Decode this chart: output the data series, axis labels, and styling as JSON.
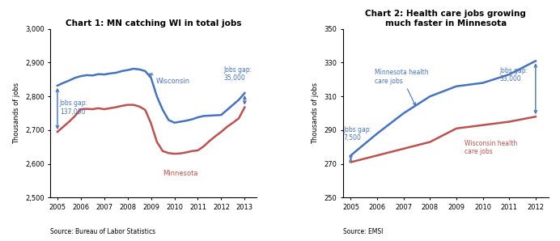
{
  "chart1": {
    "title": "Chart 1: MN catching WI in total jobs",
    "ylabel": "Thousands of jobs",
    "source": "Source: Bureau of Labor Statistics",
    "ylim": [
      2500,
      3000
    ],
    "yticks": [
      2500,
      2600,
      2700,
      2800,
      2900,
      3000
    ],
    "wi_color": "#4472C4",
    "mn_color": "#C0504D",
    "wi_years": [
      2005,
      2005.25,
      2005.5,
      2005.75,
      2006,
      2006.25,
      2006.5,
      2006.75,
      2007,
      2007.25,
      2007.5,
      2007.75,
      2008,
      2008.25,
      2008.5,
      2008.75,
      2009,
      2009.25,
      2009.5,
      2009.75,
      2010,
      2010.25,
      2010.5,
      2010.75,
      2011,
      2011.25,
      2011.5,
      2011.75,
      2012,
      2012.25,
      2012.5,
      2012.75,
      2013
    ],
    "wi_vals": [
      2832,
      2840,
      2847,
      2855,
      2860,
      2863,
      2862,
      2866,
      2865,
      2868,
      2870,
      2875,
      2878,
      2882,
      2880,
      2875,
      2855,
      2800,
      2760,
      2730,
      2722,
      2725,
      2728,
      2732,
      2738,
      2742,
      2743,
      2744,
      2745,
      2760,
      2775,
      2790,
      2810
    ],
    "mn_vals": [
      2695,
      2710,
      2725,
      2742,
      2762,
      2763,
      2762,
      2765,
      2762,
      2765,
      2768,
      2772,
      2775,
      2775,
      2770,
      2760,
      2720,
      2665,
      2638,
      2632,
      2630,
      2631,
      2634,
      2638,
      2640,
      2652,
      2668,
      2682,
      2695,
      2710,
      2722,
      2735,
      2768
    ],
    "xticks": [
      2005,
      2006,
      2007,
      2008,
      2009,
      2010,
      2011,
      2012,
      2013
    ],
    "xlim": [
      2004.7,
      2013.5
    ]
  },
  "chart2": {
    "title": "Chart 2: Health care jobs growing\nmuch faster in Minnesota",
    "ylabel": "Thousands of jobs",
    "source": "Source: EMSI",
    "ylim": [
      250,
      350
    ],
    "yticks": [
      250,
      270,
      290,
      310,
      330,
      350
    ],
    "mn_color": "#4472C4",
    "wi_color": "#C0504D",
    "mn_years": [
      2005,
      2006,
      2007,
      2008,
      2009,
      2010,
      2011,
      2012
    ],
    "mn_vals": [
      275,
      288,
      300,
      310,
      316,
      318,
      323,
      331
    ],
    "wi_years": [
      2005,
      2006,
      2007,
      2008,
      2009,
      2010,
      2011,
      2012
    ],
    "wi_vals": [
      271,
      275,
      279,
      283,
      291,
      293,
      295,
      298
    ],
    "xticks": [
      2005,
      2006,
      2007,
      2008,
      2009,
      2010,
      2011,
      2012
    ],
    "xlim": [
      2004.7,
      2012.5
    ]
  }
}
